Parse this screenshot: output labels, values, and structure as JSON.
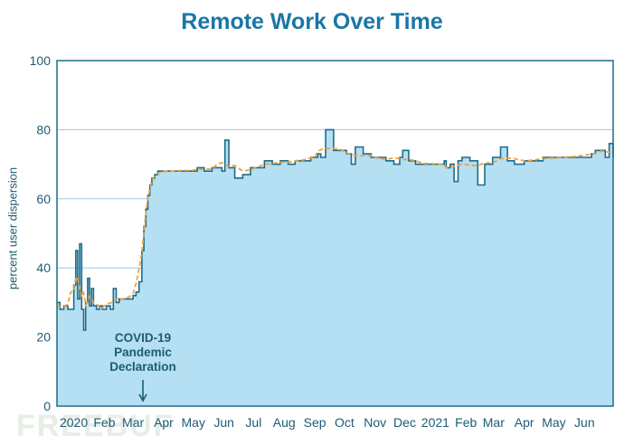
{
  "chart_data": {
    "type": "area",
    "title": "Remote Work Over Time",
    "ylabel": "percent user dispersion",
    "xlabel": "",
    "ylim": [
      0,
      100
    ],
    "xlim": [
      "2019-12-15",
      "2021-06-30"
    ],
    "grid": "horizontal",
    "yticks": [
      0,
      20,
      40,
      60,
      80,
      100
    ],
    "xticks": [
      {
        "label": "2020",
        "date": "2020-01-01"
      },
      {
        "label": "Feb",
        "date": "2020-02-01"
      },
      {
        "label": "Mar",
        "date": "2020-03-01"
      },
      {
        "label": "Apr",
        "date": "2020-04-01"
      },
      {
        "label": "May",
        "date": "2020-05-01"
      },
      {
        "label": "Jun",
        "date": "2020-06-01"
      },
      {
        "label": "Jul",
        "date": "2020-07-01"
      },
      {
        "label": "Aug",
        "date": "2020-08-01"
      },
      {
        "label": "Sep",
        "date": "2020-09-01"
      },
      {
        "label": "Oct",
        "date": "2020-10-01"
      },
      {
        "label": "Nov",
        "date": "2020-11-01"
      },
      {
        "label": "Dec",
        "date": "2020-12-01"
      },
      {
        "label": "2021",
        "date": "2021-01-01"
      },
      {
        "label": "Feb",
        "date": "2021-02-01"
      },
      {
        "label": "Mar",
        "date": "2021-03-01"
      },
      {
        "label": "Apr",
        "date": "2021-04-01"
      },
      {
        "label": "May",
        "date": "2021-05-01"
      },
      {
        "label": "Jun",
        "date": "2021-06-01"
      }
    ],
    "annotation": {
      "lines": [
        "COVID-19",
        "Pandemic",
        "Declaration"
      ],
      "date": "2020-03-11"
    },
    "colors": {
      "fill": "#b5dff2",
      "line": "#1d6c8a",
      "trend": "#f0a13c",
      "grid": "#9cc9df",
      "text": "#1d5b74",
      "title": "#1a76a6"
    },
    "series": [
      {
        "x": [
          "2019-12-15",
          "2019-12-18",
          "2019-12-22",
          "2019-12-26",
          "2019-12-29",
          "2020-01-01",
          "2020-01-03",
          "2020-01-05",
          "2020-01-07",
          "2020-01-09",
          "2020-01-11",
          "2020-01-13",
          "2020-01-15",
          "2020-01-17",
          "2020-01-19",
          "2020-01-21",
          "2020-01-24",
          "2020-01-27",
          "2020-01-30",
          "2020-02-03",
          "2020-02-07",
          "2020-02-10",
          "2020-02-13",
          "2020-02-16",
          "2020-02-19",
          "2020-02-22",
          "2020-02-26",
          "2020-03-01",
          "2020-03-04",
          "2020-03-07",
          "2020-03-10",
          "2020-03-12",
          "2020-03-14",
          "2020-03-16",
          "2020-03-18",
          "2020-03-20",
          "2020-03-23",
          "2020-03-26",
          "2020-03-30",
          "2020-04-05",
          "2020-04-12",
          "2020-04-20",
          "2020-04-28",
          "2020-05-05",
          "2020-05-12",
          "2020-05-20",
          "2020-05-26",
          "2020-05-30",
          "2020-06-02",
          "2020-06-06",
          "2020-06-12",
          "2020-06-20",
          "2020-06-28",
          "2020-07-05",
          "2020-07-12",
          "2020-07-20",
          "2020-07-28",
          "2020-08-05",
          "2020-08-12",
          "2020-08-20",
          "2020-08-28",
          "2020-09-01",
          "2020-09-04",
          "2020-09-07",
          "2020-09-12",
          "2020-09-20",
          "2020-09-28",
          "2020-10-03",
          "2020-10-08",
          "2020-10-12",
          "2020-10-20",
          "2020-10-28",
          "2020-11-05",
          "2020-11-12",
          "2020-11-20",
          "2020-11-26",
          "2020-11-29",
          "2020-12-05",
          "2020-12-12",
          "2020-12-20",
          "2020-12-28",
          "2021-01-05",
          "2021-01-10",
          "2021-01-12",
          "2021-01-16",
          "2021-01-20",
          "2021-01-24",
          "2021-01-28",
          "2021-02-05",
          "2021-02-10",
          "2021-02-13",
          "2021-02-20",
          "2021-02-28",
          "2021-03-08",
          "2021-03-15",
          "2021-03-22",
          "2021-04-01",
          "2021-04-10",
          "2021-04-20",
          "2021-05-01",
          "2021-05-10",
          "2021-05-20",
          "2021-06-01",
          "2021-06-08",
          "2021-06-12",
          "2021-06-18",
          "2021-06-22",
          "2021-06-26",
          "2021-06-30"
        ],
        "y": [
          30,
          28,
          29,
          28,
          28,
          35,
          45,
          31,
          47,
          28,
          22,
          30,
          37,
          29,
          34,
          29,
          28,
          29,
          28,
          29,
          28,
          34,
          30,
          31,
          31,
          31,
          31,
          32,
          33,
          36,
          45,
          52,
          57,
          61,
          64,
          66,
          67,
          68,
          68,
          68,
          68,
          68,
          68,
          69,
          68,
          69,
          69,
          68,
          77,
          69,
          66,
          67,
          69,
          69,
          71,
          70,
          71,
          70,
          71,
          71,
          72,
          72,
          73,
          72,
          80,
          74,
          74,
          73,
          70,
          75,
          73,
          72,
          72,
          71,
          70,
          72,
          74,
          71,
          70,
          70,
          70,
          70,
          71,
          69,
          70,
          65,
          71,
          72,
          71,
          71,
          64,
          70,
          72,
          75,
          71,
          70,
          71,
          71,
          72,
          72,
          72,
          72,
          72,
          73,
          74,
          74,
          72,
          76,
          72
        ]
      }
    ]
  }
}
